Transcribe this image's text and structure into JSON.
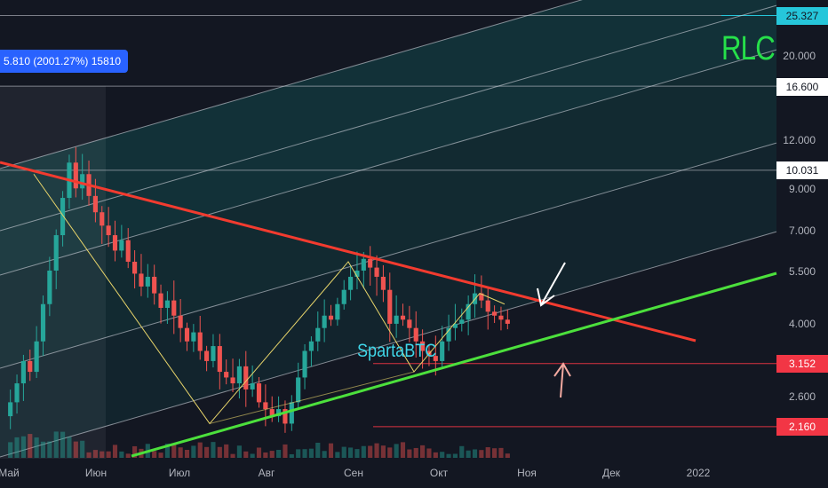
{
  "chart_data": {
    "type": "candlestick",
    "title": "RLC",
    "watermark": "SpartaBTC",
    "measure_label": "5.810 (2001.27%) 15810",
    "y_scale": "log",
    "ylim": [
      1.95,
      28
    ],
    "x_ticks": [
      "Май",
      "Июн",
      "Июл",
      "Авг",
      "Сен",
      "Окт",
      "Ноя",
      "Дек",
      "2022"
    ],
    "y_ticks": [
      "20.000",
      "12.000",
      "9.000",
      "7.000",
      "5.500",
      "4.000",
      "2.600"
    ],
    "price_tags": [
      {
        "value": "25.327",
        "style": "cyan"
      },
      {
        "value": "16.600",
        "style": "white"
      },
      {
        "value": "10.031",
        "style": "white"
      },
      {
        "value": "3.152",
        "style": "red"
      },
      {
        "value": "2.160",
        "style": "red"
      }
    ],
    "horizontal_levels": [
      25.327,
      16.6,
      10.031,
      3.152,
      2.16
    ],
    "candles_close": [
      2.5,
      2.8,
      3.2,
      3.0,
      3.6,
      4.5,
      5.5,
      6.8,
      8.5,
      10.5,
      9.0,
      9.8,
      8.6,
      7.8,
      7.2,
      6.8,
      6.2,
      6.6,
      5.8,
      5.4,
      5.0,
      5.3,
      4.8,
      4.4,
      4.6,
      4.2,
      3.9,
      3.6,
      3.8,
      3.4,
      3.2,
      3.5,
      3.0,
      2.9,
      2.8,
      3.1,
      2.7,
      2.8,
      2.5,
      2.4,
      2.3,
      2.4,
      2.2,
      2.5,
      2.9,
      3.4,
      3.6,
      3.9,
      4.2,
      4.1,
      4.5,
      4.9,
      5.3,
      5.5,
      5.9,
      5.6,
      5.3,
      4.9,
      4.0,
      4.2,
      4.1,
      3.9,
      3.6,
      3.4,
      3.3,
      3.2,
      3.6,
      3.9,
      4.0,
      4.1,
      4.5,
      4.8,
      4.6,
      4.3,
      4.2,
      4.1,
      4.0
    ],
    "colors": {
      "background": "#131722",
      "up": "#26a69a",
      "down": "#ef5350",
      "resistance": "#f23b2f",
      "support": "#4ce03c",
      "channel": "#d1d4dc",
      "ticker": "#26e04a",
      "watermark": "#3fd6e8"
    }
  }
}
